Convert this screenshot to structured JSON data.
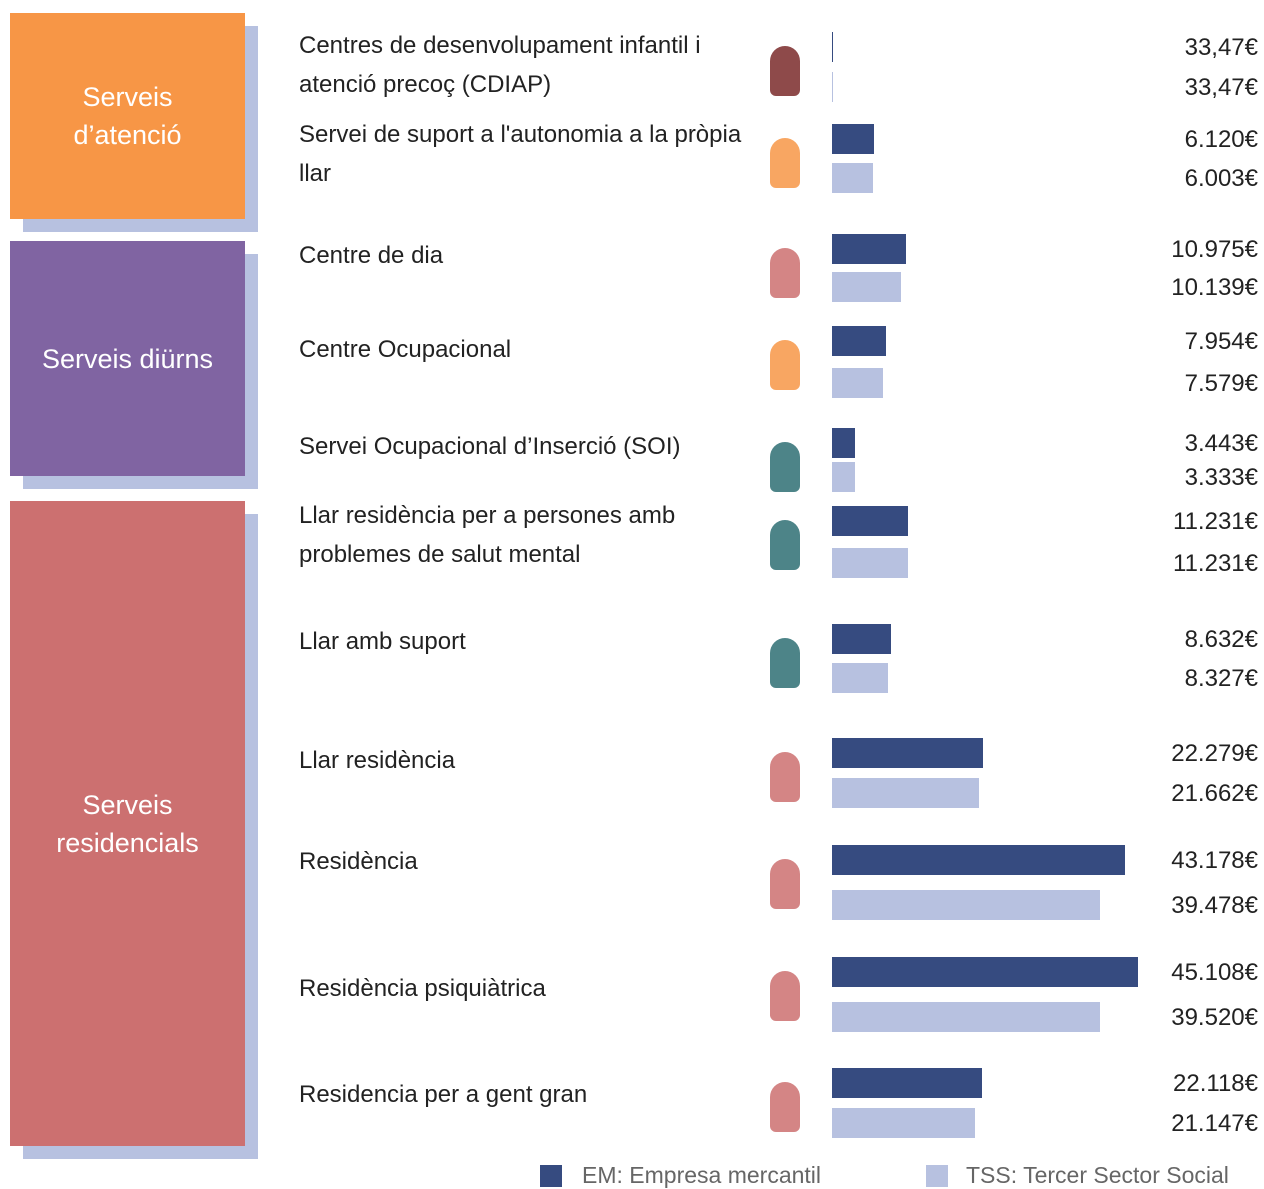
{
  "chart_data": {
    "type": "bar",
    "orientation": "horizontal",
    "groups": [
      {
        "name": "Serveis d’atenció",
        "color": "#f79646",
        "rows": [
          0,
          1
        ]
      },
      {
        "name": "Serveis diürns",
        "color": "#8064a2",
        "rows": [
          2,
          4
        ]
      },
      {
        "name": "Serveis residencials",
        "color": "#cc7070",
        "rows": [
          5,
          10
        ]
      }
    ],
    "categories": [
      "Centres de desenvolupament infantil i atenció precoç (CDIAP)",
      "Servei de suport a l'autonomia a la pròpia llar",
      "Centre de dia",
      "Centre Ocupacional",
      "Servei Ocupacional d’Inserció (SOI)",
      "Llar residència per a persones amb problemes de salut mental",
      "Llar amb suport",
      "Llar residència",
      "Residència",
      "Residència psiquiàtrica",
      "Residencia per a gent gran"
    ],
    "series": [
      {
        "name": "EM: Empresa mercantil",
        "color": "#364b80",
        "values": [
          33.47,
          6120,
          10975,
          7954,
          3443,
          11231,
          8632,
          22279,
          43178,
          45108,
          22118
        ],
        "value_labels": [
          "33,47€",
          "6.120€",
          "10.975€",
          "7.954€",
          "3.443€",
          "11.231€",
          "8.632€",
          "22.279€",
          "43.178€",
          "45.108€",
          "22.118€"
        ]
      },
      {
        "name": "TSS: Tercer Sector Social",
        "color": "#b7c1e0",
        "values": [
          33.47,
          6003,
          10139,
          7579,
          3333,
          11231,
          8327,
          21662,
          39478,
          39520,
          21147
        ],
        "value_labels": [
          "33,47€",
          "6.003€",
          "10.139€",
          "7.579€",
          "3.333€",
          "11.231€",
          "8.327€",
          "21.662€",
          "39.478€",
          "39.520€",
          "21.147€"
        ]
      }
    ],
    "xlim": [
      0,
      45108
    ]
  }
}
